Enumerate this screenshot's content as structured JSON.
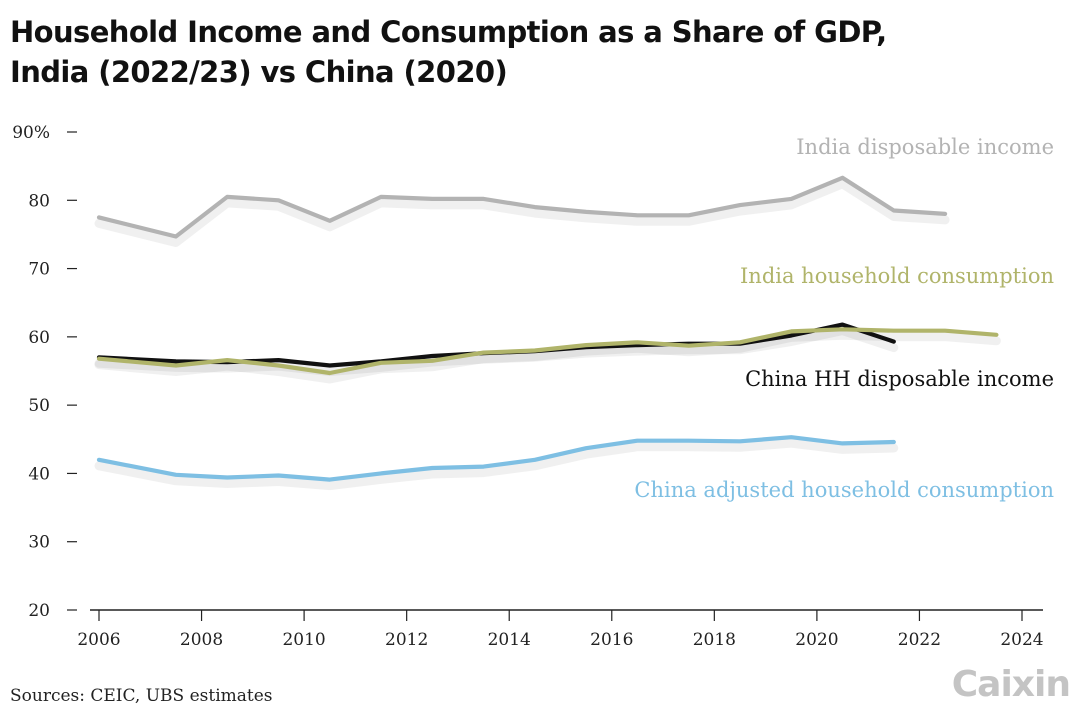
{
  "title_line1": "Household Income and Consumption as a Share of GDP,",
  "title_line2": "India (2022/23) vs China (2020)",
  "source": "Sources: CEIC, UBS estimates",
  "logo": "Caixin",
  "chart_data": {
    "type": "line",
    "title": "Household Income and Consumption as a Share of GDP, India (2022/23) vs China (2020)",
    "x_ticks": [
      2006,
      2008,
      2010,
      2012,
      2014,
      2016,
      2018,
      2020,
      2022,
      2024
    ],
    "y_ticks": [
      {
        "value": 20,
        "label": "20"
      },
      {
        "value": 30,
        "label": "30"
      },
      {
        "value": 40,
        "label": "40"
      },
      {
        "value": 50,
        "label": "50"
      },
      {
        "value": 60,
        "label": "60"
      },
      {
        "value": 70,
        "label": "70"
      },
      {
        "value": 80,
        "label": "80"
      },
      {
        "value": 90,
        "label": "90%"
      }
    ],
    "xlim": [
      2006,
      2024
    ],
    "ylim": [
      20,
      90
    ],
    "grid": false,
    "series": [
      {
        "name": "India disposable income",
        "color": "#b3b3b3",
        "x": [
          2006,
          2007.5,
          2008.5,
          2009.5,
          2010.5,
          2011.5,
          2012.5,
          2013.5,
          2014.5,
          2015.5,
          2016.5,
          2017.5,
          2018.5,
          2019.5,
          2020.5,
          2021.5,
          2022.5
        ],
        "y": [
          77.5,
          74.7,
          80.5,
          80.0,
          77.0,
          80.5,
          80.2,
          80.2,
          79.0,
          78.3,
          77.8,
          77.8,
          79.3,
          80.2,
          83.3,
          78.5,
          78.0
        ]
      },
      {
        "name": "India household consumption",
        "color": "#b0b46a",
        "x": [
          2006,
          2007.5,
          2008.5,
          2009.5,
          2010.5,
          2011.5,
          2012.5,
          2013.5,
          2014.5,
          2015.5,
          2016.5,
          2017.5,
          2018.5,
          2019.5,
          2020.5,
          2021.5,
          2022.5,
          2023.5
        ],
        "y": [
          56.8,
          55.8,
          56.6,
          55.8,
          54.7,
          56.2,
          56.5,
          57.7,
          58.0,
          58.8,
          59.2,
          58.7,
          59.2,
          60.8,
          61.1,
          60.9,
          60.9,
          60.3
        ]
      },
      {
        "name": "China HH disposable income",
        "color": "#111111",
        "x": [
          2006,
          2007.5,
          2008.5,
          2009.5,
          2010.5,
          2011.5,
          2012.5,
          2013.5,
          2014.5,
          2015.5,
          2016.5,
          2017.5,
          2018.5,
          2019.5,
          2020.5,
          2021.5
        ],
        "y": [
          57.0,
          56.4,
          56.3,
          56.6,
          55.8,
          56.4,
          57.2,
          57.6,
          57.9,
          58.5,
          58.8,
          59.0,
          59.0,
          60.2,
          61.8,
          59.3
        ]
      },
      {
        "name": "China adjusted household consumption",
        "color": "#7ebfe3",
        "x": [
          2006,
          2007.5,
          2008.5,
          2009.5,
          2010.5,
          2011.5,
          2012.5,
          2013.5,
          2014.5,
          2015.5,
          2016.5,
          2017.5,
          2018.5,
          2019.5,
          2020.5,
          2021.5
        ],
        "y": [
          42.0,
          39.8,
          39.4,
          39.7,
          39.1,
          40.0,
          40.8,
          41.0,
          42.0,
          43.7,
          44.8,
          44.8,
          44.7,
          45.3,
          44.4,
          44.6
        ]
      }
    ]
  }
}
